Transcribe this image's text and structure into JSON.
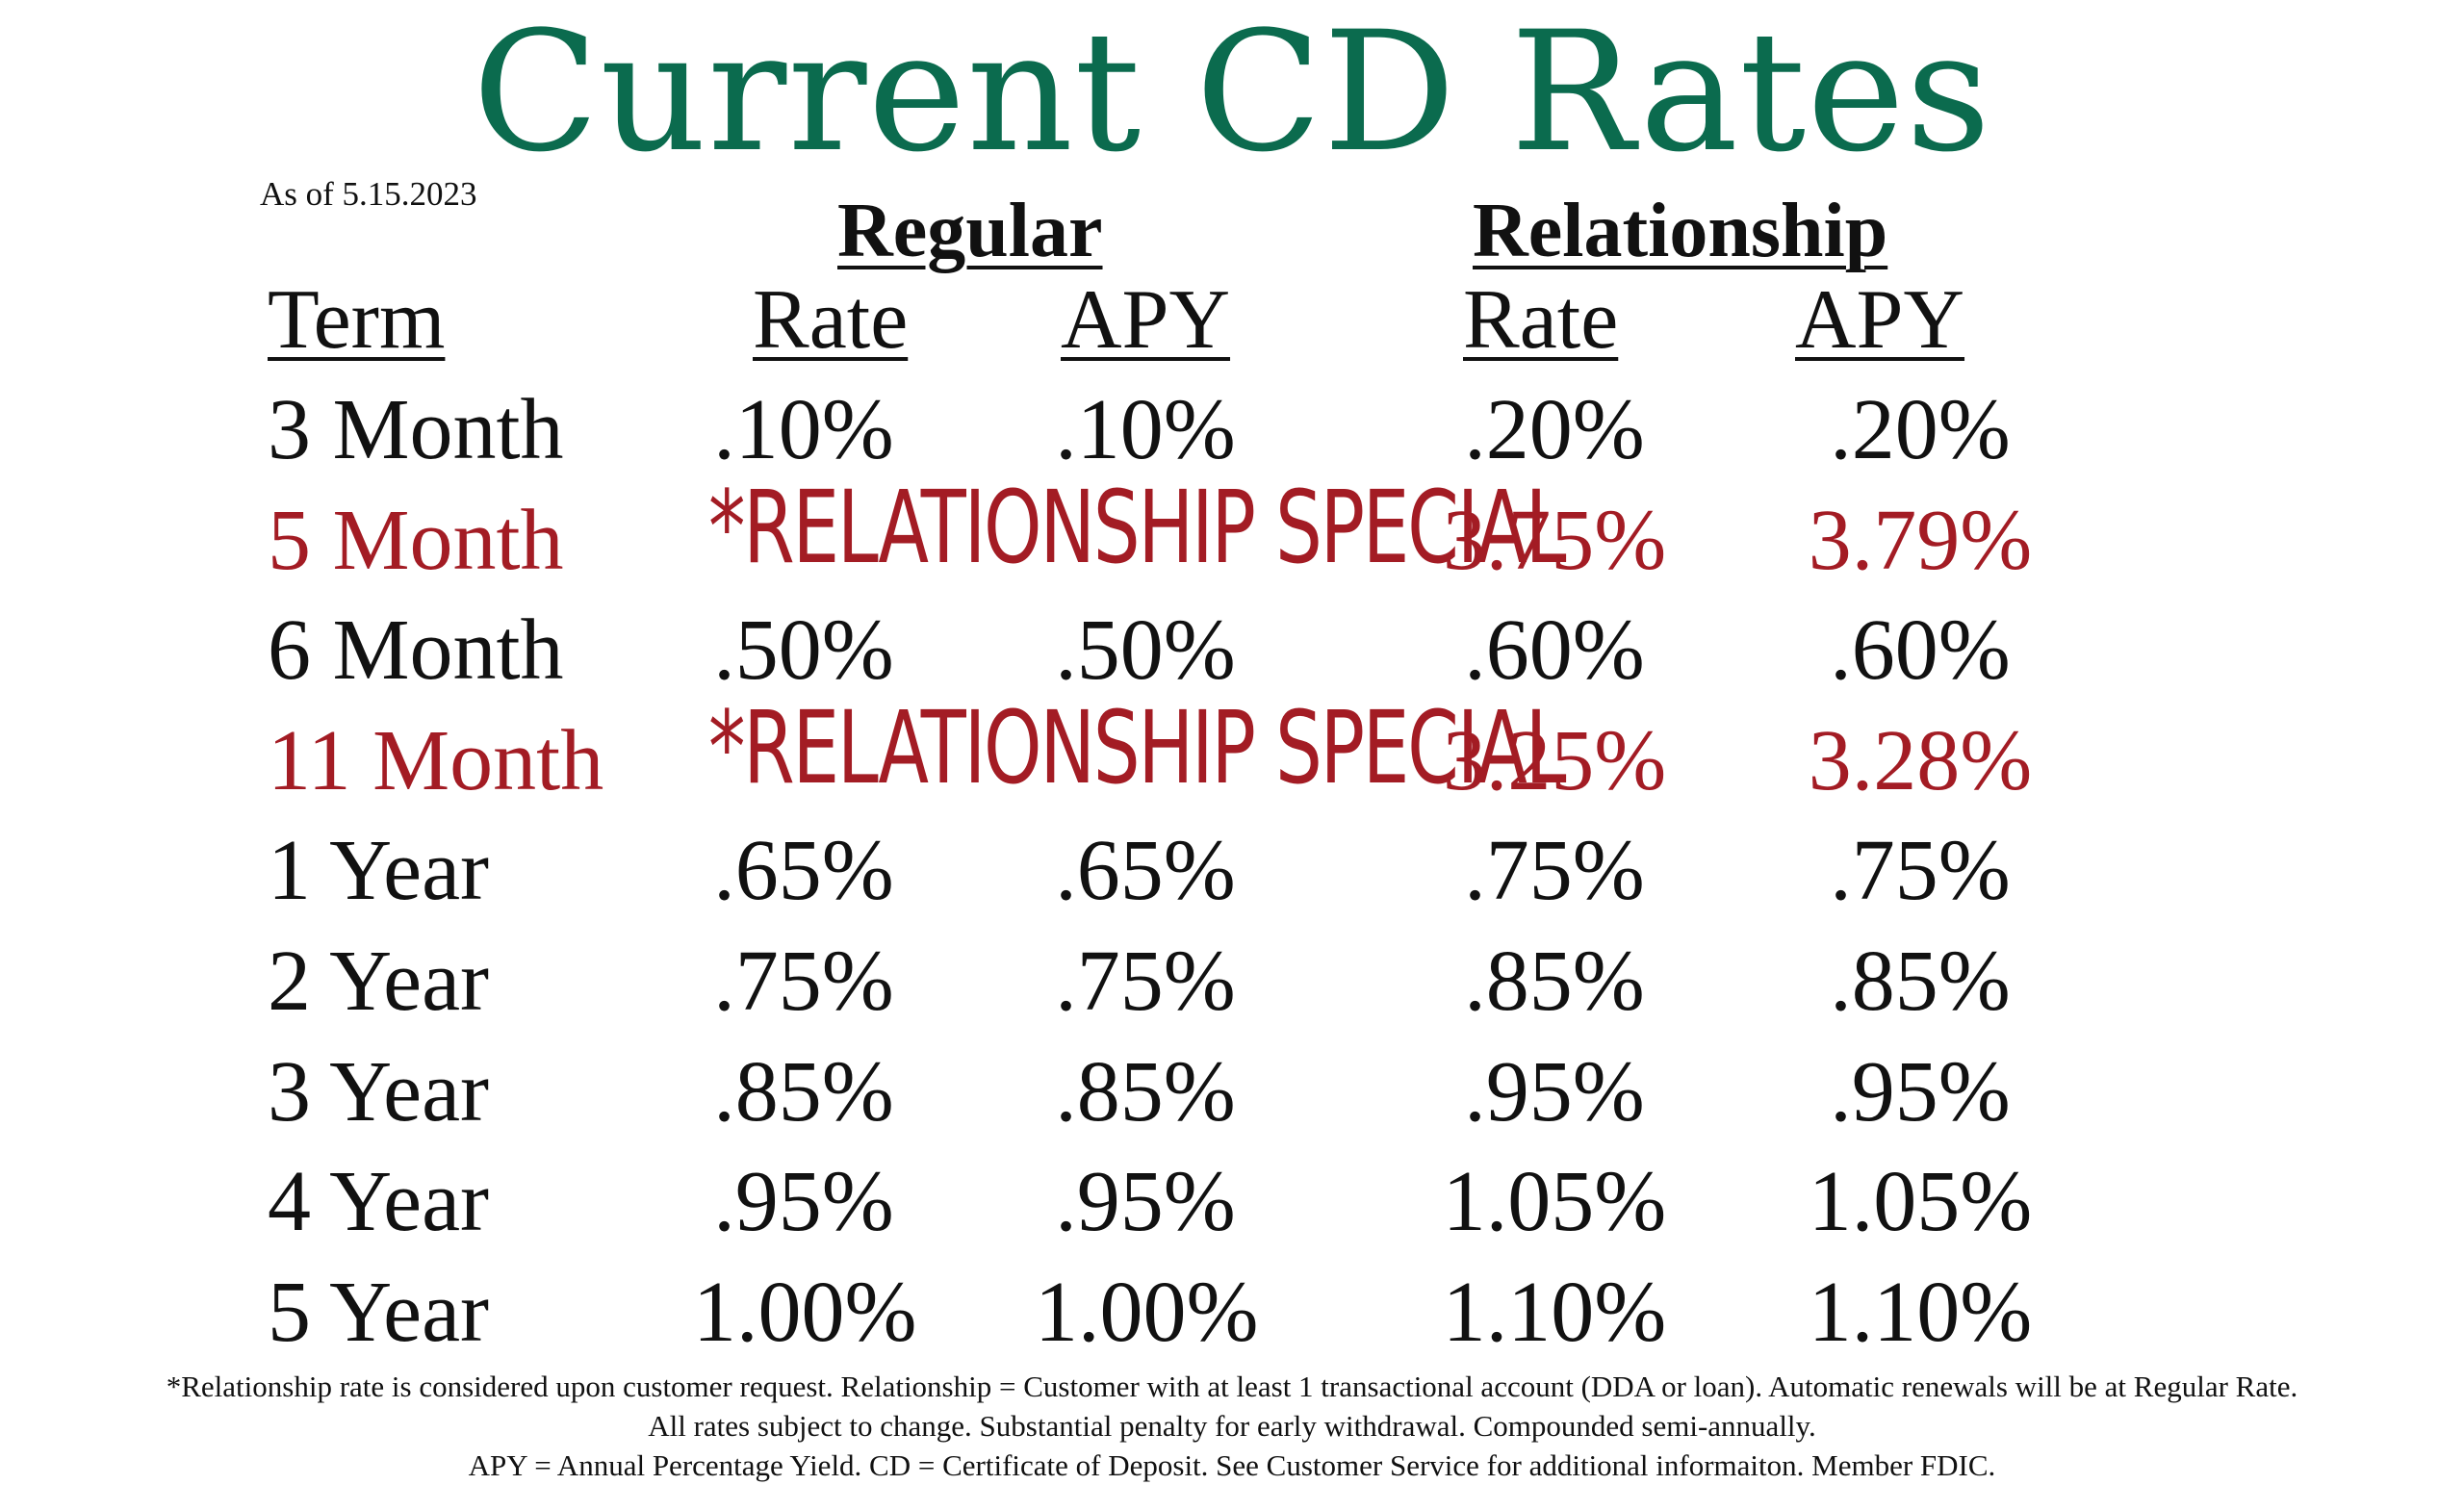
{
  "title": "Current CD Rates",
  "as_of": "As of 5.15.2023",
  "groups": {
    "regular": "Regular",
    "relationship": "Relationship"
  },
  "columns": {
    "term": "Term",
    "regular_rate": "Rate",
    "regular_apy": "APY",
    "relationship_rate": "Rate",
    "relationship_apy": "APY"
  },
  "rows": [
    {
      "term": "3 Month",
      "regular_rate": ".10%",
      "regular_apy": ".10%",
      "relationship_rate": ".20%",
      "relationship_apy": ".20%",
      "special": false
    },
    {
      "term": "5 Month",
      "special_label": "*RELATIONSHIP SPECIAL",
      "relationship_rate": "3.75%",
      "relationship_apy": "3.79%",
      "special": true
    },
    {
      "term": "6 Month",
      "regular_rate": ".50%",
      "regular_apy": ".50%",
      "relationship_rate": ".60%",
      "relationship_apy": ".60%",
      "special": false
    },
    {
      "term": "11 Month",
      "special_label": "*RELATIONSHIP SPECIAL",
      "relationship_rate": "3.25%",
      "relationship_apy": "3.28%",
      "special": true
    },
    {
      "term": "1 Year",
      "regular_rate": ".65%",
      "regular_apy": ".65%",
      "relationship_rate": ".75%",
      "relationship_apy": ".75%",
      "special": false
    },
    {
      "term": "2 Year",
      "regular_rate": ".75%",
      "regular_apy": ".75%",
      "relationship_rate": ".85%",
      "relationship_apy": ".85%",
      "special": false
    },
    {
      "term": "3 Year",
      "regular_rate": ".85%",
      "regular_apy": ".85%",
      "relationship_rate": ".95%",
      "relationship_apy": ".95%",
      "special": false
    },
    {
      "term": "4 Year",
      "regular_rate": ".95%",
      "regular_apy": ".95%",
      "relationship_rate": "1.05%",
      "relationship_apy": "1.05%",
      "special": false
    },
    {
      "term": "5 Year",
      "regular_rate": "1.00%",
      "regular_apy": "1.00%",
      "relationship_rate": "1.10%",
      "relationship_apy": "1.10%",
      "special": false
    }
  ],
  "footnotes": [
    "*Relationship rate is considered upon customer request. Relationship = Customer with at least 1 transactional account (DDA or loan).  Automatic renewals will be at Regular Rate.",
    "All rates subject to change.  Substantial penalty for early withdrawal.  Compounded semi-annually.",
    "APY = Annual Percentage Yield.  CD = Certificate of Deposit. See Customer Service for additional informaiton.    Member FDIC."
  ],
  "colors": {
    "title": "#0b6b4e",
    "text": "#111111",
    "special": "#a31c24"
  }
}
